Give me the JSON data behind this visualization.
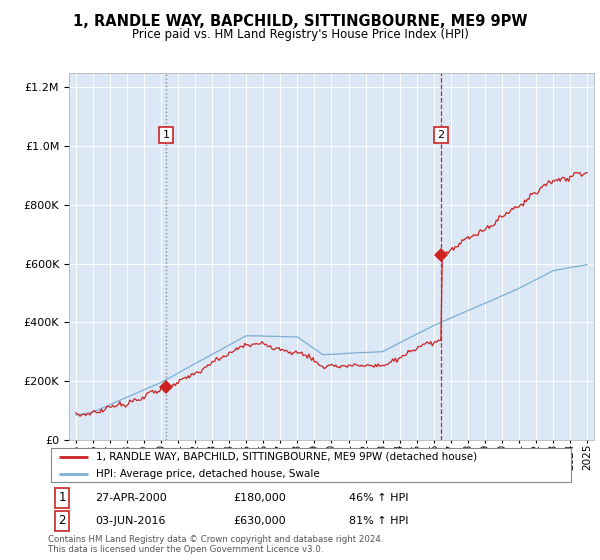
{
  "title": "1, RANDLE WAY, BAPCHILD, SITTINGBOURNE, ME9 9PW",
  "subtitle": "Price paid vs. HM Land Registry's House Price Index (HPI)",
  "legend_line1": "1, RANDLE WAY, BAPCHILD, SITTINGBOURNE, ME9 9PW (detached house)",
  "legend_line2": "HPI: Average price, detached house, Swale",
  "footnote1": "Contains HM Land Registry data © Crown copyright and database right 2024.",
  "footnote2": "This data is licensed under the Open Government Licence v3.0.",
  "sale1_date": "27-APR-2000",
  "sale1_price": "£180,000",
  "sale1_hpi": "46% ↑ HPI",
  "sale2_date": "03-JUN-2016",
  "sale2_price": "£630,000",
  "sale2_hpi": "81% ↑ HPI",
  "hpi_color": "#7bafd4",
  "price_color": "#cc2222",
  "sale1_year": 2000.3,
  "sale2_year": 2016.42,
  "sale1_price_val": 180000,
  "sale2_price_val": 630000,
  "ylim_max": 1250000,
  "background_color": "#dce8f5"
}
